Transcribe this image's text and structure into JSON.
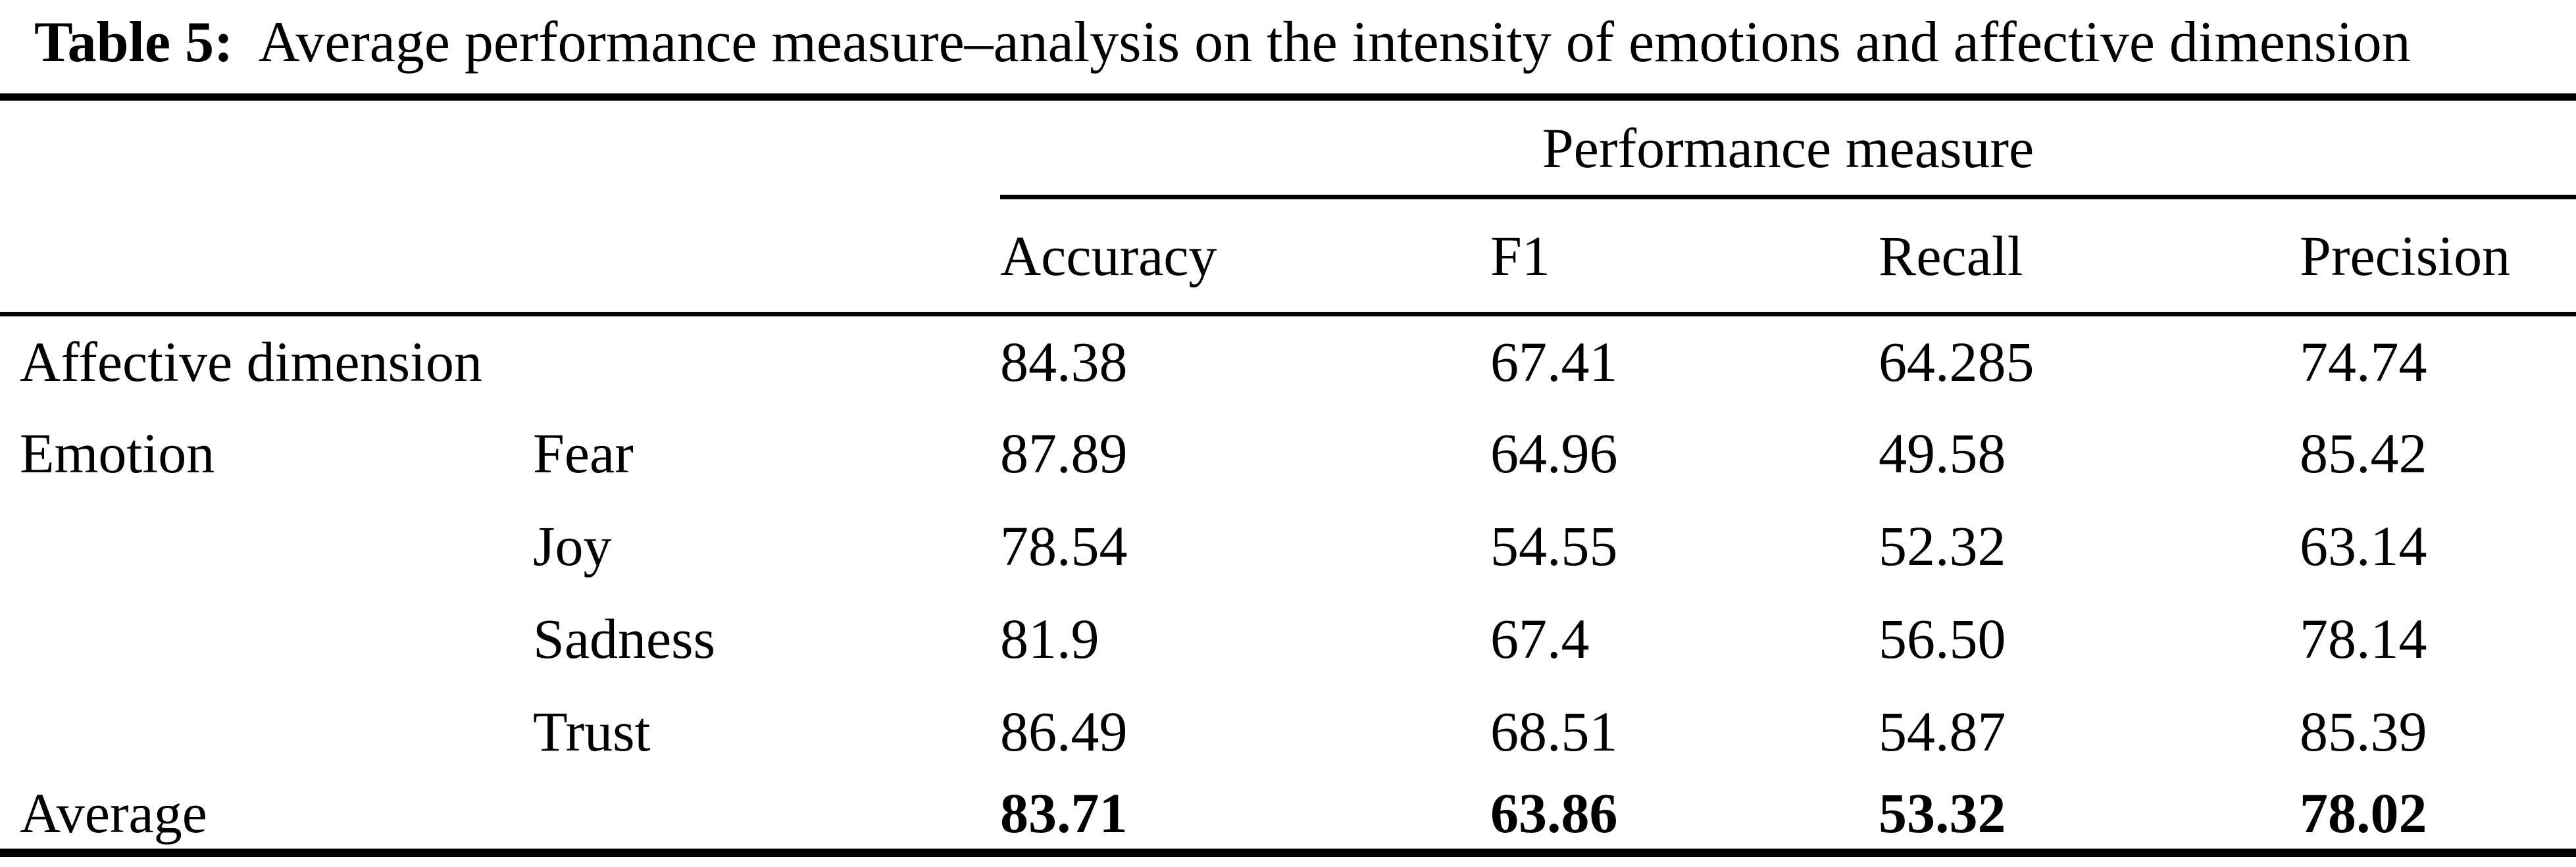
{
  "colors": {
    "background": "#ffffff",
    "text": "#000000",
    "rule": "#000000"
  },
  "caption": {
    "label": "Table 5:",
    "text": "Average performance measure–analysis on the intensity of emotions and affective dimension"
  },
  "table": {
    "group_header": "Performance measure",
    "columns": [
      "Accuracy",
      "F1",
      "Recall",
      "Precision"
    ],
    "rows": [
      {
        "category": "Affective dimension",
        "sub": "",
        "values": [
          "84.38",
          "67.41",
          "64.285",
          "74.74"
        ]
      },
      {
        "category": "Emotion",
        "sub": "Fear",
        "values": [
          "87.89",
          "64.96",
          "49.58",
          "85.42"
        ]
      },
      {
        "category": "",
        "sub": "Joy",
        "values": [
          "78.54",
          "54.55",
          "52.32",
          "63.14"
        ]
      },
      {
        "category": "",
        "sub": "Sadness",
        "values": [
          "81.9",
          "67.4",
          "56.50",
          "78.14"
        ]
      },
      {
        "category": "",
        "sub": "Trust",
        "values": [
          "86.49",
          "68.51",
          "54.87",
          "85.39"
        ]
      },
      {
        "category": "Average",
        "sub": "",
        "values": [
          "83.71",
          "63.86",
          "53.32",
          "78.02"
        ]
      }
    ]
  },
  "chart_data": {
    "type": "table",
    "title": "Table 5: Average performance measure–analysis on the intensity of emotions and affective dimension",
    "columns": [
      "Accuracy",
      "F1",
      "Recall",
      "Precision"
    ],
    "series": [
      {
        "name": "Affective dimension",
        "values": [
          84.38,
          67.41,
          64.285,
          74.74
        ]
      },
      {
        "name": "Emotion – Fear",
        "values": [
          87.89,
          64.96,
          49.58,
          85.42
        ]
      },
      {
        "name": "Emotion – Joy",
        "values": [
          78.54,
          54.55,
          52.32,
          63.14
        ]
      },
      {
        "name": "Emotion – Sadness",
        "values": [
          81.9,
          67.4,
          56.5,
          78.14
        ]
      },
      {
        "name": "Emotion – Trust",
        "values": [
          86.49,
          68.51,
          54.87,
          85.39
        ]
      },
      {
        "name": "Average",
        "values": [
          83.71,
          63.86,
          53.32,
          78.02
        ]
      }
    ]
  }
}
